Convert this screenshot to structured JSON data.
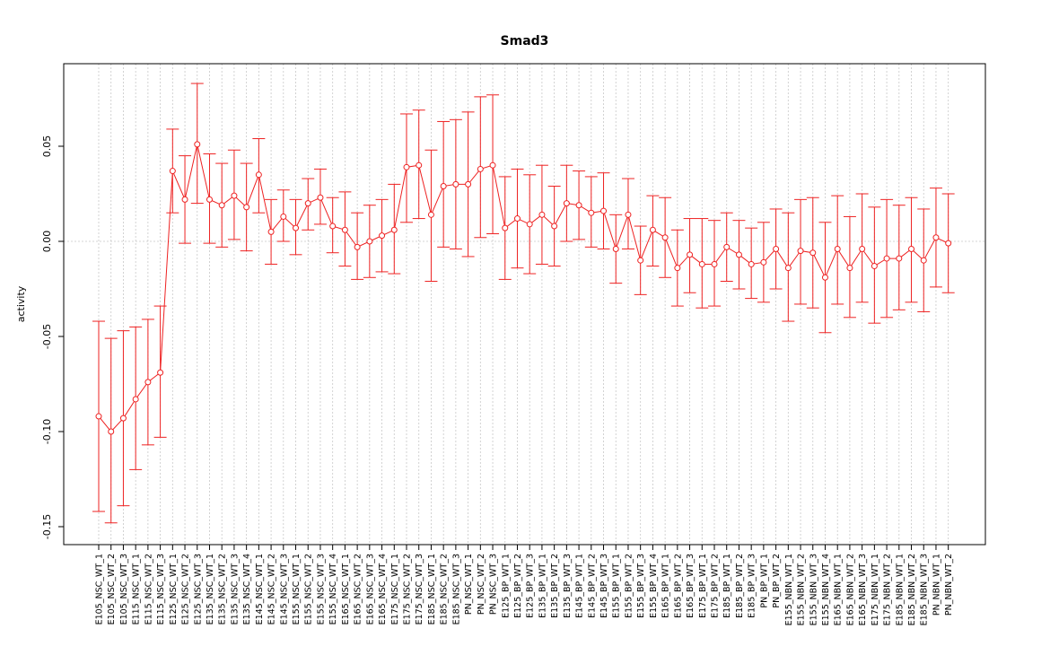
{
  "chart_data": {
    "type": "line",
    "title": "Smad3",
    "xlabel": "",
    "ylabel": "activity",
    "ylim": [
      -0.155,
      0.092
    ],
    "yticks": [
      -0.15,
      -0.1,
      -0.05,
      0.0,
      0.05
    ],
    "ytick_labels": [
      "-0.15",
      "-0.10",
      "-0.05",
      "0.00",
      "0.05"
    ],
    "grid": true,
    "series_color": "#ee2222",
    "grid_color": "#c8c8c8",
    "categories": [
      "E105_NSC_WT_1",
      "E105_NSC_WT_2",
      "E105_NSC_WT_3",
      "E115_NSC_WT_1",
      "E115_NSC_WT_2",
      "E115_NSC_WT_3",
      "E125_NSC_WT_1",
      "E125_NSC_WT_2",
      "E125_NSC_WT_3",
      "E135_NSC_WT_1",
      "E135_NSC_WT_2",
      "E135_NSC_WT_3",
      "E135_NSC_WT_4",
      "E145_NSC_WT_1",
      "E145_NSC_WT_2",
      "E145_NSC_WT_3",
      "E155_NSC_WT_1",
      "E155_NSC_WT_2",
      "E155_NSC_WT_3",
      "E155_NSC_WT_4",
      "E165_NSC_WT_1",
      "E165_NSC_WT_2",
      "E165_NSC_WT_3",
      "E165_NSC_WT_4",
      "E175_NSC_WT_1",
      "E175_NSC_WT_2",
      "E175_NSC_WT_3",
      "E185_NSC_WT_1",
      "E185_NSC_WT_2",
      "E185_NSC_WT_3",
      "PN_NSC_WT_1",
      "PN_NSC_WT_2",
      "PN_NSC_WT_3",
      "E125_BP_WT_1",
      "E125_BP_WT_2",
      "E125_BP_WT_3",
      "E135_BP_WT_1",
      "E135_BP_WT_2",
      "E135_BP_WT_3",
      "E145_BP_WT_1",
      "E145_BP_WT_2",
      "E145_BP_WT_3",
      "E155_BP_WT_1",
      "E155_BP_WT_2",
      "E155_BP_WT_3",
      "E155_BP_WT_4",
      "E165_BP_WT_1",
      "E165_BP_WT_2",
      "E165_BP_WT_3",
      "E175_BP_WT_1",
      "E175_BP_WT_2",
      "E185_BP_WT_1",
      "E185_BP_WT_2",
      "E185_BP_WT_3",
      "PN_BP_WT_1",
      "PN_BP_WT_2",
      "E155_NBN_WT_1",
      "E155_NBN_WT_2",
      "E155_NBN_WT_3",
      "E155_NBN_WT_4",
      "E165_NBN_WT_1",
      "E165_NBN_WT_2",
      "E165_NBN_WT_3",
      "E175_NBN_WT_1",
      "E175_NBN_WT_2",
      "E185_NBN_WT_1",
      "E185_NBN_WT_2",
      "E185_NBN_WT_3",
      "PN_NBN_WT_1",
      "PN_NBN_WT_2"
    ],
    "series": [
      {
        "values": [
          -0.092,
          -0.1,
          -0.093,
          -0.083,
          -0.074,
          -0.069,
          0.037,
          0.022,
          0.051,
          0.022,
          0.019,
          0.024,
          0.018,
          0.035,
          0.005,
          0.013,
          0.007,
          0.02,
          0.023,
          0.008,
          0.006,
          -0.003,
          0.0,
          0.003,
          0.006,
          0.039,
          0.04,
          0.014,
          0.029,
          0.03,
          0.03,
          0.038,
          0.04,
          0.007,
          0.012,
          0.009,
          0.014,
          0.008,
          0.02,
          0.019,
          0.015,
          0.016,
          -0.004,
          0.014,
          -0.01,
          0.006,
          0.002,
          -0.014,
          -0.007,
          -0.012,
          -0.012,
          -0.003,
          -0.007,
          -0.012,
          -0.011,
          -0.004,
          -0.014,
          -0.005,
          -0.006,
          -0.019,
          -0.004,
          -0.014,
          -0.004,
          -0.013,
          -0.009,
          -0.009,
          -0.004,
          -0.01,
          0.002,
          -0.001
        ],
        "lower": [
          -0.142,
          -0.148,
          -0.139,
          -0.12,
          -0.107,
          -0.103,
          0.015,
          -0.001,
          0.02,
          -0.001,
          -0.003,
          0.001,
          -0.005,
          0.015,
          -0.012,
          0.0,
          -0.007,
          0.006,
          0.009,
          -0.006,
          -0.013,
          -0.02,
          -0.019,
          -0.016,
          -0.017,
          0.01,
          0.012,
          -0.021,
          -0.003,
          -0.004,
          -0.008,
          0.002,
          0.004,
          -0.02,
          -0.014,
          -0.017,
          -0.012,
          -0.013,
          0.0,
          0.001,
          -0.003,
          -0.004,
          -0.022,
          -0.004,
          -0.028,
          -0.013,
          -0.019,
          -0.034,
          -0.027,
          -0.035,
          -0.034,
          -0.021,
          -0.025,
          -0.03,
          -0.032,
          -0.025,
          -0.042,
          -0.033,
          -0.035,
          -0.048,
          -0.033,
          -0.04,
          -0.032,
          -0.043,
          -0.04,
          -0.036,
          -0.032,
          -0.037,
          -0.024,
          -0.027
        ],
        "upper": [
          -0.042,
          -0.051,
          -0.047,
          -0.045,
          -0.041,
          -0.034,
          0.059,
          0.045,
          0.083,
          0.046,
          0.041,
          0.048,
          0.041,
          0.054,
          0.022,
          0.027,
          0.022,
          0.033,
          0.038,
          0.023,
          0.026,
          0.015,
          0.019,
          0.022,
          0.03,
          0.067,
          0.069,
          0.048,
          0.063,
          0.064,
          0.068,
          0.076,
          0.077,
          0.034,
          0.038,
          0.035,
          0.04,
          0.029,
          0.04,
          0.037,
          0.034,
          0.036,
          0.014,
          0.033,
          0.008,
          0.024,
          0.023,
          0.006,
          0.012,
          0.012,
          0.011,
          0.015,
          0.011,
          0.007,
          0.01,
          0.017,
          0.015,
          0.022,
          0.023,
          0.01,
          0.024,
          0.013,
          0.025,
          0.018,
          0.022,
          0.019,
          0.023,
          0.017,
          0.028,
          0.025
        ]
      }
    ]
  }
}
